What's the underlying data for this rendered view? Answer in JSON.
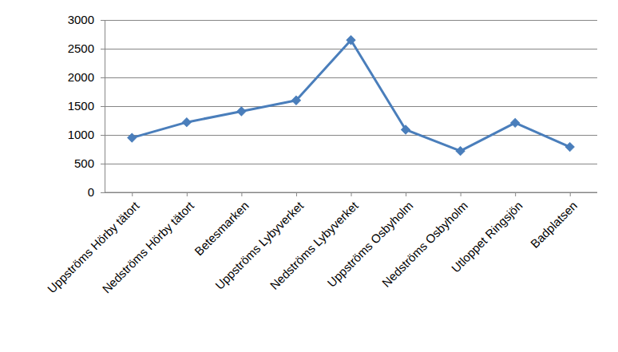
{
  "chart_data": {
    "type": "line",
    "categories": [
      "Uppströms Hörby tätort",
      "Nedströms Hörby tätort",
      "Betesmarken",
      "Uppströms Lybyverket",
      "Nedströms Lybyverket",
      "Uppströms Osbyholm",
      "Nedströms Osbyholm",
      "Utloppet Ringsjön",
      "Badplatsen"
    ],
    "values": [
      950,
      1220,
      1410,
      1600,
      2650,
      1090,
      720,
      1210,
      790
    ],
    "color": "#4a7ebb",
    "marker": "diamond",
    "ylim": [
      0,
      3000
    ],
    "yticks": [
      0,
      500,
      1000,
      1500,
      2000,
      2500,
      3000
    ],
    "grid": true
  }
}
